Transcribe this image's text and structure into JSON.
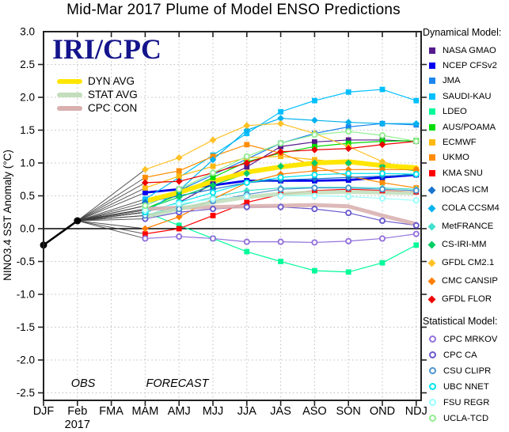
{
  "title": "Mid-Mar 2017 Plume of Model ENSO Predictions",
  "watermark": "IRI/CPC",
  "watermark_color": "#14148C",
  "legend": {
    "dynamical_header": "Dynamical Model:",
    "statistical_header": "Statistical Model:",
    "dynamical": [
      {
        "label": "NASA GMAO",
        "color": "#551A8B",
        "marker": "square"
      },
      {
        "label": "NCEP CFSv2",
        "color": "#0000EE",
        "marker": "square"
      },
      {
        "label": "JMA",
        "color": "#1C86EE",
        "marker": "square"
      },
      {
        "label": "SAUDI-KAU",
        "color": "#00BFFF",
        "marker": "square"
      },
      {
        "label": "LDEO",
        "color": "#00FA9A",
        "marker": "square"
      },
      {
        "label": "AUS/POAMA",
        "color": "#00DD00",
        "marker": "square"
      },
      {
        "label": "ECMWF",
        "color": "#FFB90F",
        "marker": "square"
      },
      {
        "label": "UKMO",
        "color": "#FF8C00",
        "marker": "square"
      },
      {
        "label": "KMA SNU",
        "color": "#FF0000",
        "marker": "square"
      },
      {
        "label": "IOCAS ICM",
        "color": "#1874CD",
        "marker": "diamond"
      },
      {
        "label": "COLA CCSM4",
        "color": "#00B2EE",
        "marker": "diamond"
      },
      {
        "label": "MetFRANCE",
        "color": "#40E0D0",
        "marker": "diamond"
      },
      {
        "label": "CS-IRI-MM",
        "color": "#00CD66",
        "marker": "diamond"
      },
      {
        "label": "GFDL CM2.1",
        "color": "#FFC125",
        "marker": "diamond"
      },
      {
        "label": "CMC CANSIP",
        "color": "#FF7F00",
        "marker": "diamond"
      },
      {
        "label": "GFDL FLOR",
        "color": "#EE0000",
        "marker": "diamond"
      }
    ],
    "statistical": [
      {
        "label": "CPC MRKOV",
        "color": "#9370DB",
        "marker": "circle"
      },
      {
        "label": "CPC CA",
        "color": "#6959CD",
        "marker": "circle"
      },
      {
        "label": "CSU CLIPR",
        "color": "#4F94CD",
        "marker": "circle"
      },
      {
        "label": "UBC NNET",
        "color": "#00E5EE",
        "marker": "circle"
      },
      {
        "label": "FSU REGR",
        "color": "#97FFFF",
        "marker": "circle"
      },
      {
        "label": "UCLA-TCD",
        "color": "#90EE90",
        "marker": "circle"
      }
    ]
  },
  "chart_data": {
    "type": "line",
    "title": "Mid-Mar 2017 Plume of Model ENSO Predictions",
    "ylabel": "NINO3.4 SST Anomaly (°C)",
    "ylim": [
      -2.5,
      3.0
    ],
    "ytick_step": 0.5,
    "grid": "dotted",
    "legend_position": "right",
    "x_categories": [
      "DJF",
      "Feb",
      "FMA",
      "MAM",
      "AMJ",
      "MJJ",
      "JJA",
      "JAS",
      "ASO",
      "SON",
      "OND",
      "NDJ"
    ],
    "x_year_label": "2017",
    "annotations": {
      "obs": "OBS",
      "forecast": "FORECAST"
    },
    "observed": {
      "x": [
        "DJF",
        "Feb"
      ],
      "values": [
        -0.25,
        0.12
      ]
    },
    "forecast_start_index": 3,
    "forecast_x": [
      "MAM",
      "AMJ",
      "MJJ",
      "JJA",
      "JAS",
      "ASO",
      "SON",
      "OND",
      "NDJ"
    ],
    "series": [
      {
        "name": "NASA GMAO",
        "group": "dynamical",
        "marker": "square",
        "color": "#551A8B",
        "values": [
          0.25,
          0.4,
          0.68,
          0.94,
          1.25,
          1.32,
          1.35,
          1.35,
          1.33
        ]
      },
      {
        "name": "NCEP CFSv2",
        "group": "dynamical",
        "marker": "square",
        "color": "#0000EE",
        "values": [
          0.55,
          0.6,
          0.66,
          0.73,
          0.73,
          0.73,
          0.74,
          0.78,
          0.82
        ]
      },
      {
        "name": "JMA",
        "group": "dynamical",
        "marker": "square",
        "color": "#1C86EE",
        "values": [
          0.35,
          0.58,
          0.82,
          1.06,
          1.3,
          1.45,
          1.55,
          1.6,
          1.58
        ]
      },
      {
        "name": "SAUDI-KAU",
        "group": "dynamical",
        "marker": "square",
        "color": "#00BFFF",
        "values": [
          0.45,
          0.78,
          1.12,
          1.45,
          1.78,
          1.95,
          2.08,
          2.12,
          1.95
        ]
      },
      {
        "name": "LDEO",
        "group": "dynamical",
        "marker": "square",
        "color": "#00FA9A",
        "values": [
          0.25,
          0.05,
          -0.15,
          -0.35,
          -0.5,
          -0.64,
          -0.66,
          -0.52,
          -0.25
        ]
      },
      {
        "name": "AUS/POAMA",
        "group": "dynamical",
        "marker": "square",
        "color": "#00DD00",
        "values": [
          0.3,
          0.52,
          0.78,
          1.02,
          1.15,
          1.25,
          1.3,
          1.33,
          1.34
        ]
      },
      {
        "name": "ECMWF",
        "group": "dynamical",
        "marker": "square",
        "color": "#FFB90F",
        "values": [
          0.62,
          0.8,
          0.95,
          1.08,
          1.1,
          1.05,
          1.0,
          0.95,
          0.9
        ]
      },
      {
        "name": "UKMO",
        "group": "dynamical",
        "marker": "square",
        "color": "#FF8C00",
        "values": [
          0.78,
          0.88,
          1.1,
          1.28,
          1.15,
          0.95,
          0.8,
          0.7,
          0.62
        ]
      },
      {
        "name": "KMA SNU",
        "group": "dynamical",
        "marker": "square",
        "color": "#FF0000",
        "values": [
          -0.08,
          0.0,
          0.2,
          0.4,
          0.52,
          0.58,
          0.6,
          0.58,
          0.56
        ]
      },
      {
        "name": "IOCAS ICM",
        "group": "dynamical",
        "marker": "diamond",
        "color": "#1874CD",
        "values": [
          0.4,
          0.5,
          0.6,
          0.7,
          0.74,
          0.76,
          0.78,
          0.8,
          0.82
        ]
      },
      {
        "name": "COLA CCSM4",
        "group": "dynamical",
        "marker": "diamond",
        "color": "#00B2EE",
        "values": [
          0.25,
          0.58,
          1.05,
          1.5,
          1.68,
          1.65,
          1.62,
          1.6,
          1.6
        ]
      },
      {
        "name": "MetFRANCE",
        "group": "dynamical",
        "marker": "diamond",
        "color": "#40E0D0",
        "values": [
          0.2,
          0.35,
          0.48,
          0.58,
          0.62,
          0.63,
          0.63,
          0.62,
          0.6
        ]
      },
      {
        "name": "CS-IRI-MM",
        "group": "dynamical",
        "marker": "diamond",
        "color": "#00CD66",
        "values": [
          0.3,
          0.48,
          0.66,
          0.84,
          0.95,
          1.0,
          1.0,
          0.95,
          0.88
        ]
      },
      {
        "name": "GFDL CM2.1",
        "group": "dynamical",
        "marker": "diamond",
        "color": "#FFC125",
        "values": [
          0.9,
          1.08,
          1.35,
          1.57,
          1.6,
          1.45,
          1.25,
          1.02,
          0.88
        ]
      },
      {
        "name": "CMC CANSIP",
        "group": "dynamical",
        "marker": "diamond",
        "color": "#FF7F00",
        "values": [
          0.0,
          0.18,
          0.45,
          0.7,
          0.83,
          0.88,
          0.9,
          0.9,
          0.9
        ]
      },
      {
        "name": "GFDL FLOR",
        "group": "dynamical",
        "marker": "diamond",
        "color": "#EE0000",
        "values": [
          0.7,
          0.72,
          0.85,
          1.0,
          1.17,
          1.2,
          1.22,
          1.28,
          1.33
        ]
      },
      {
        "name": "CPC MRKOV",
        "group": "statistical",
        "marker": "circle",
        "color": "#9370DB",
        "values": [
          -0.15,
          -0.12,
          -0.15,
          -0.2,
          -0.2,
          -0.21,
          -0.19,
          -0.15,
          -0.08
        ]
      },
      {
        "name": "CPC CA",
        "group": "statistical",
        "marker": "circle",
        "color": "#6959CD",
        "values": [
          0.15,
          0.25,
          0.3,
          0.33,
          0.33,
          0.3,
          0.24,
          0.12,
          0.05
        ]
      },
      {
        "name": "CSU CLIPR",
        "group": "statistical",
        "marker": "circle",
        "color": "#4F94CD",
        "values": [
          0.2,
          0.3,
          0.42,
          0.52,
          0.6,
          0.62,
          0.62,
          0.6,
          0.58
        ]
      },
      {
        "name": "UBC NNET",
        "group": "statistical",
        "marker": "circle",
        "color": "#00E5EE",
        "values": [
          0.25,
          0.4,
          0.55,
          0.7,
          0.78,
          0.82,
          0.84,
          0.84,
          0.83
        ]
      },
      {
        "name": "FSU REGR",
        "group": "statistical",
        "marker": "circle",
        "color": "#97FFFF",
        "values": [
          0.28,
          0.38,
          0.45,
          0.49,
          0.5,
          0.5,
          0.49,
          0.46,
          0.43
        ]
      },
      {
        "name": "UCLA-TCD",
        "group": "statistical",
        "marker": "circle",
        "color": "#90EE90",
        "values": [
          0.35,
          0.6,
          0.85,
          1.1,
          1.3,
          1.43,
          1.48,
          1.42,
          1.33
        ]
      }
    ],
    "averages": [
      {
        "name": "DYN AVG",
        "color": "#FFE600",
        "values": [
          0.42,
          0.55,
          0.72,
          0.86,
          0.94,
          1.0,
          1.02,
          0.96,
          0.93
        ]
      },
      {
        "name": "STAT AVG",
        "color": "#C3DEBC",
        "values": [
          0.18,
          0.3,
          0.4,
          0.48,
          0.53,
          0.55,
          0.56,
          0.55,
          0.54
        ]
      },
      {
        "name": "CPC CON",
        "color": "#D9AFAF",
        "values": [
          0.3,
          0.32,
          0.33,
          0.34,
          0.35,
          0.36,
          0.34,
          0.2,
          0.07
        ]
      }
    ]
  }
}
